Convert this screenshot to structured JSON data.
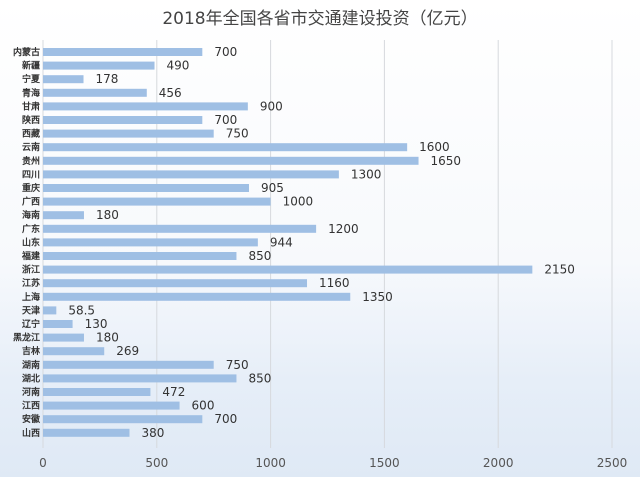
{
  "chart_data": {
    "type": "bar",
    "orientation": "horizontal",
    "title": "2018年全国各省市交通建设投资（亿元）",
    "xlabel": "",
    "ylabel": "",
    "xlim": [
      0,
      2500
    ],
    "xticks": [
      0,
      500,
      1000,
      1500,
      2000,
      2500
    ],
    "grid": true,
    "bar_color": "#9fbfe4",
    "categories": [
      "内蒙古",
      "新疆",
      "宁夏",
      "青海",
      "甘肃",
      "陕西",
      "西藏",
      "云南",
      "贵州",
      "四川",
      "重庆",
      "广西",
      "海南",
      "广东",
      "山东",
      "福建",
      "浙江",
      "江苏",
      "上海",
      "天津",
      "辽宁",
      "黑龙江",
      "吉林",
      "湖南",
      "湖北",
      "河南",
      "江西",
      "安徽",
      "山西"
    ],
    "values": [
      700,
      490,
      178,
      456,
      900,
      700,
      750,
      1600,
      1650,
      1300,
      905,
      1000,
      180,
      1200,
      944,
      850,
      2150,
      1160,
      1350,
      58.5,
      130,
      180,
      269,
      750,
      850,
      472,
      600,
      700,
      380
    ],
    "value_labels": [
      "700",
      "490",
      "178",
      "456",
      "900",
      "700",
      "750",
      "1600",
      "1650",
      "1300",
      "905",
      "1000",
      "180",
      "1200",
      "944",
      "850",
      "2150",
      "1160",
      "1350",
      "58.5",
      "130",
      "180",
      "269",
      "750",
      "850",
      "472",
      "600",
      "700",
      "380"
    ]
  }
}
